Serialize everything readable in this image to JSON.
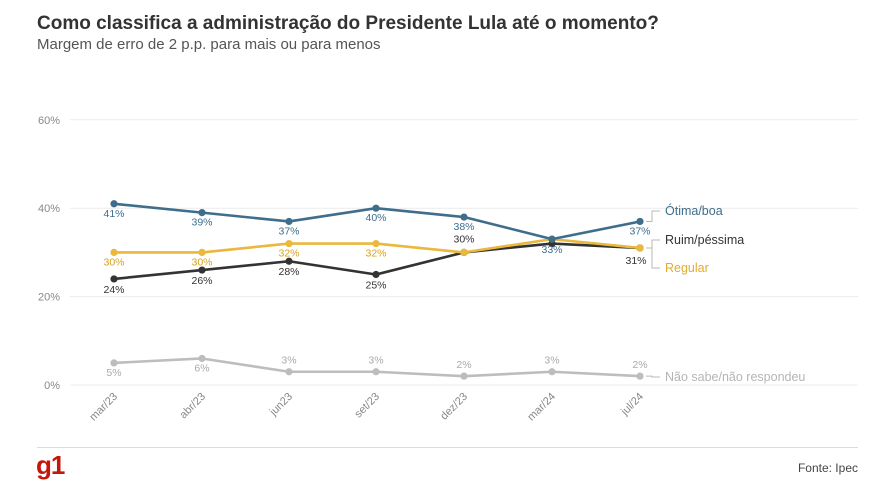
{
  "header": {
    "title": "Como classifica a administração do Presidente Lula até o momento?",
    "subtitle": "Margem de erro de 2 p.p. para mais ou para menos"
  },
  "footer": {
    "logo": "g1",
    "source": "Fonte: Ipec"
  },
  "colors": {
    "otima": "#3e6e8c",
    "ruim": "#333333",
    "regular": "#e9b83c",
    "nao_sabe": "#bdbdbd",
    "grid": "#ececec",
    "logo": "#c4170c"
  },
  "chart_data": {
    "type": "line",
    "categories": [
      "mar/23",
      "abr/23",
      "jun23",
      "set/23",
      "dez/23",
      "mar/24",
      "jul/24"
    ],
    "y_ticks": [
      "0%",
      "20%",
      "40%",
      "60%"
    ],
    "ylim": [
      0,
      70
    ],
    "grid": true,
    "legend": "right, at line ends",
    "series": [
      {
        "name": "Ótima/boa",
        "values": [
          41,
          39,
          37,
          40,
          38,
          33,
          37
        ],
        "labels": [
          "41%",
          "39%",
          "37%",
          "40%",
          "38%",
          "33%",
          "37%"
        ],
        "color": "#3e6e8c"
      },
      {
        "name": "Ruim/péssima",
        "values": [
          24,
          26,
          28,
          25,
          30,
          32,
          31
        ],
        "labels": [
          "24%",
          "26%",
          "28%",
          "25%",
          "30%",
          "",
          "31%"
        ],
        "color": "#333333"
      },
      {
        "name": "Regular",
        "values": [
          30,
          30,
          32,
          32,
          30,
          33,
          31
        ],
        "labels": [
          "30%",
          "30%",
          "32%",
          "32%",
          "",
          "",
          ""
        ],
        "color": "#e9b83c"
      },
      {
        "name": "Não sabe/não respondeu",
        "values": [
          5,
          6,
          3,
          3,
          2,
          3,
          2
        ],
        "labels": [
          "5%",
          "6%",
          "3%",
          "3%",
          "2%",
          "3%",
          "2%"
        ],
        "color": "#bdbdbd"
      }
    ]
  }
}
